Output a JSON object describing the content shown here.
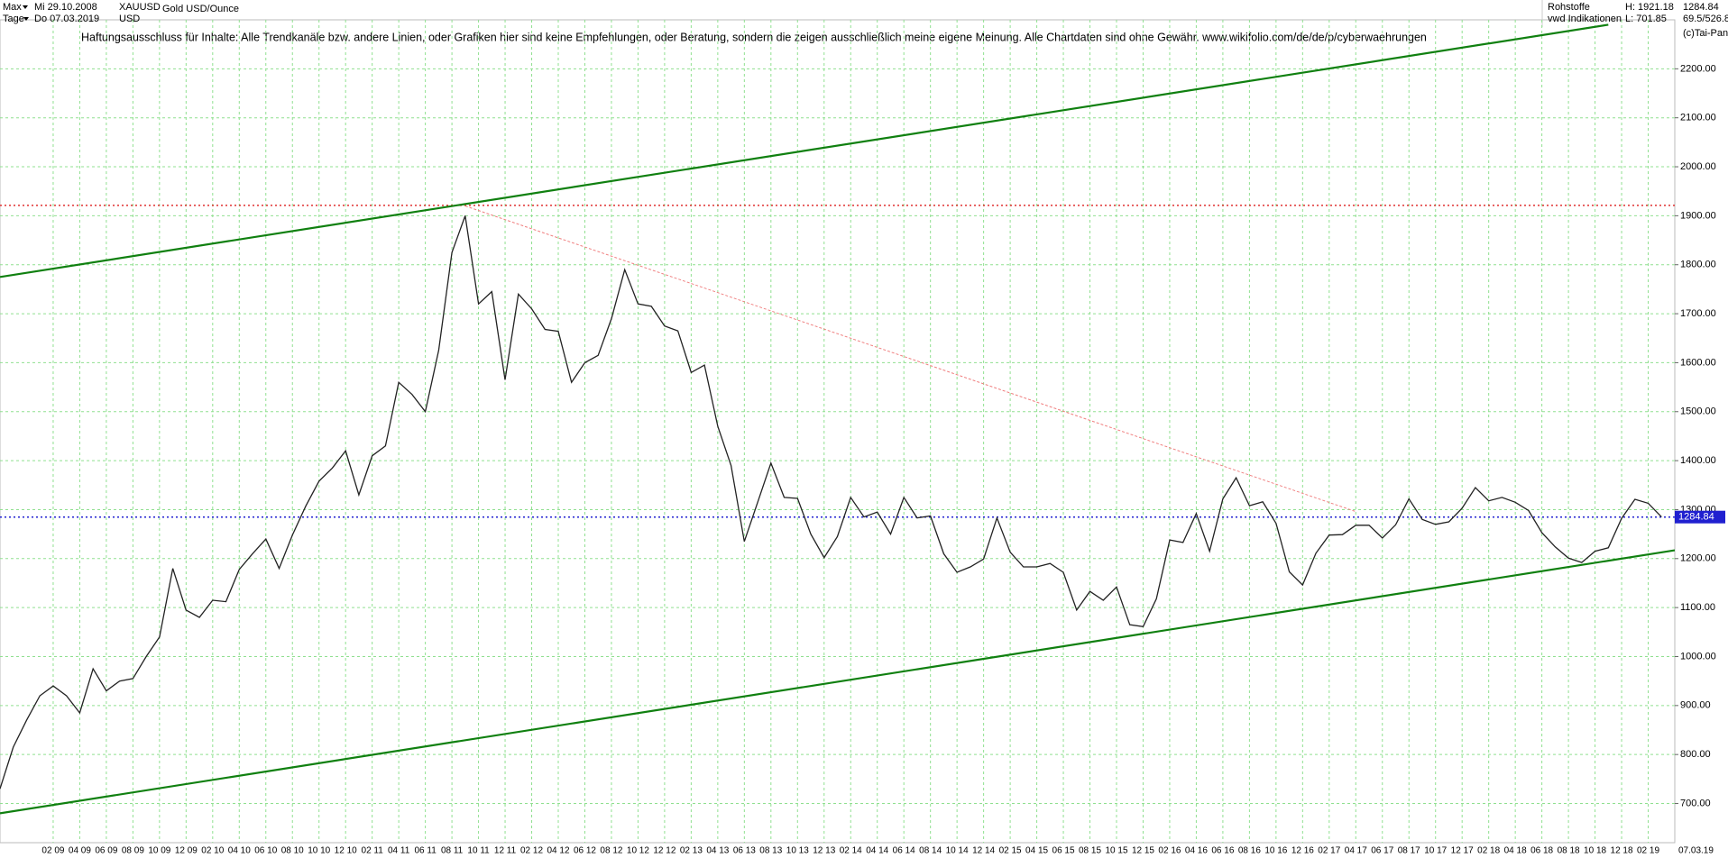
{
  "header": {
    "range": "Max",
    "start": "Mi 29.10.2008",
    "symbol": "XAUUSD",
    "name": "Gold USD/Ounce",
    "period": "Tage",
    "end": "Do 07.03.2019",
    "currency": "USD",
    "group": "Rohstoffe",
    "source": "vwd Indikationen",
    "high": "H: 1921.18",
    "low": "L: 701.85",
    "last": "1284.84",
    "ratio": "69.5/526.8",
    "copyright": "(c)Tai-Pan"
  },
  "chart_data": {
    "type": "line",
    "annotation": "Haftungsausschluss für Inhalte: Alle Trendkanäle bzw. andere Linien, oder Grafiken hier sind keine Empfehlungen, oder Beratung, sondern die zeigen ausschließlich meine eigene Meinung. Alle Chartdaten sind ohne Gewähr.  www.wikifolio.com/de/de/p/cyberwaehrungen",
    "x": [
      "2008-10",
      "2008-11",
      "2008-12",
      "2009-01",
      "2009-02",
      "2009-03",
      "2009-04",
      "2009-05",
      "2009-06",
      "2009-07",
      "2009-08",
      "2009-09",
      "2009-10",
      "2009-11",
      "2009-12",
      "2010-01",
      "2010-02",
      "2010-03",
      "2010-04",
      "2010-05",
      "2010-06",
      "2010-07",
      "2010-08",
      "2010-09",
      "2010-10",
      "2010-11",
      "2010-12",
      "2011-01",
      "2011-02",
      "2011-03",
      "2011-04",
      "2011-05",
      "2011-06",
      "2011-07",
      "2011-08",
      "2011-09",
      "2011-10",
      "2011-11",
      "2011-12",
      "2012-01",
      "2012-02",
      "2012-03",
      "2012-04",
      "2012-05",
      "2012-06",
      "2012-07",
      "2012-08",
      "2012-09",
      "2012-10",
      "2012-11",
      "2012-12",
      "2013-01",
      "2013-02",
      "2013-03",
      "2013-04",
      "2013-05",
      "2013-06",
      "2013-07",
      "2013-08",
      "2013-09",
      "2013-10",
      "2013-11",
      "2013-12",
      "2014-01",
      "2014-02",
      "2014-03",
      "2014-04",
      "2014-05",
      "2014-06",
      "2014-07",
      "2014-08",
      "2014-09",
      "2014-10",
      "2014-11",
      "2014-12",
      "2015-01",
      "2015-02",
      "2015-03",
      "2015-04",
      "2015-05",
      "2015-06",
      "2015-07",
      "2015-08",
      "2015-09",
      "2015-10",
      "2015-11",
      "2015-12",
      "2016-01",
      "2016-02",
      "2016-03",
      "2016-04",
      "2016-05",
      "2016-06",
      "2016-07",
      "2016-08",
      "2016-09",
      "2016-10",
      "2016-11",
      "2016-12",
      "2017-01",
      "2017-02",
      "2017-03",
      "2017-04",
      "2017-05",
      "2017-06",
      "2017-07",
      "2017-08",
      "2017-09",
      "2017-10",
      "2017-11",
      "2017-12",
      "2018-01",
      "2018-02",
      "2018-03",
      "2018-04",
      "2018-05",
      "2018-06",
      "2018-07",
      "2018-08",
      "2018-09",
      "2018-10",
      "2018-11",
      "2018-12",
      "2019-01",
      "2019-02",
      "2019-03"
    ],
    "series": [
      {
        "name": "XAUUSD",
        "color": "#222222",
        "values": [
          730,
          815,
          870,
          920,
          940,
          920,
          885,
          975,
          930,
          950,
          955,
          1000,
          1040,
          1180,
          1095,
          1080,
          1115,
          1112,
          1178,
          1210,
          1240,
          1180,
          1248,
          1307,
          1358,
          1385,
          1420,
          1330,
          1410,
          1430,
          1560,
          1535,
          1500,
          1625,
          1825,
          1900,
          1720,
          1745,
          1565,
          1740,
          1710,
          1668,
          1664,
          1560,
          1600,
          1615,
          1690,
          1790,
          1720,
          1715,
          1675,
          1665,
          1580,
          1595,
          1470,
          1390,
          1235,
          1315,
          1395,
          1325,
          1323,
          1250,
          1202,
          1245,
          1325,
          1285,
          1295,
          1250,
          1325,
          1283,
          1287,
          1210,
          1172,
          1183,
          1199,
          1283,
          1213,
          1183,
          1183,
          1190,
          1172,
          1095,
          1133,
          1115,
          1142,
          1065,
          1061,
          1118,
          1238,
          1233,
          1292,
          1215,
          1322,
          1365,
          1308,
          1316,
          1272,
          1173,
          1146,
          1211,
          1248,
          1249,
          1268,
          1268,
          1242,
          1269,
          1322,
          1280,
          1270,
          1275,
          1303,
          1345,
          1318,
          1325,
          1315,
          1298,
          1253,
          1224,
          1201,
          1192,
          1215,
          1222,
          1282,
          1321,
          1313,
          1285
        ]
      }
    ],
    "lines": [
      {
        "color": "#108010",
        "x": [
          "2008-10",
          "2018-11"
        ],
        "y": [
          1775,
          2290
        ]
      },
      {
        "color": "#108010",
        "x": [
          "2008-10",
          "2019-04"
        ],
        "y": [
          680,
          1217
        ]
      },
      {
        "color": "#f08080",
        "x": [
          "2011-09",
          "2017-04"
        ],
        "y": [
          1920,
          1296
        ]
      }
    ],
    "hlines": [
      {
        "value": 1921.18,
        "color": "#e03030"
      },
      {
        "value": 1284.84,
        "color": "#2020d0",
        "label": "1284.84"
      }
    ],
    "xlim": [
      "2008-10",
      "2019-04"
    ],
    "xticks": [
      {
        "value": "2009-02",
        "label": "02 09"
      },
      {
        "value": "2009-04",
        "label": "04 09"
      },
      {
        "value": "2009-06",
        "label": "06 09"
      },
      {
        "value": "2009-08",
        "label": "08 09"
      },
      {
        "value": "2009-10",
        "label": "10 09"
      },
      {
        "value": "2009-12",
        "label": "12 09"
      },
      {
        "value": "2010-02",
        "label": "02 10"
      },
      {
        "value": "2010-04",
        "label": "04 10"
      },
      {
        "value": "2010-06",
        "label": "06 10"
      },
      {
        "value": "2010-08",
        "label": "08 10"
      },
      {
        "value": "2010-10",
        "label": "10 10"
      },
      {
        "value": "2010-12",
        "label": "12 10"
      },
      {
        "value": "2011-02",
        "label": "02 11"
      },
      {
        "value": "2011-04",
        "label": "04 11"
      },
      {
        "value": "2011-06",
        "label": "06 11"
      },
      {
        "value": "2011-08",
        "label": "08 11"
      },
      {
        "value": "2011-10",
        "label": "10 11"
      },
      {
        "value": "2011-12",
        "label": "12 11"
      },
      {
        "value": "2012-02",
        "label": "02 12"
      },
      {
        "value": "2012-04",
        "label": "04 12"
      },
      {
        "value": "2012-06",
        "label": "06 12"
      },
      {
        "value": "2012-08",
        "label": "08 12"
      },
      {
        "value": "2012-10",
        "label": "10 12"
      },
      {
        "value": "2012-12",
        "label": "12 12"
      },
      {
        "value": "2013-02",
        "label": "02 13"
      },
      {
        "value": "2013-04",
        "label": "04 13"
      },
      {
        "value": "2013-06",
        "label": "06 13"
      },
      {
        "value": "2013-08",
        "label": "08 13"
      },
      {
        "value": "2013-10",
        "label": "10 13"
      },
      {
        "value": "2013-12",
        "label": "12 13"
      },
      {
        "value": "2014-02",
        "label": "02 14"
      },
      {
        "value": "2014-04",
        "label": "04 14"
      },
      {
        "value": "2014-06",
        "label": "06 14"
      },
      {
        "value": "2014-08",
        "label": "08 14"
      },
      {
        "value": "2014-10",
        "label": "10 14"
      },
      {
        "value": "2014-12",
        "label": "12 14"
      },
      {
        "value": "2015-02",
        "label": "02 15"
      },
      {
        "value": "2015-04",
        "label": "04 15"
      },
      {
        "value": "2015-06",
        "label": "06 15"
      },
      {
        "value": "2015-08",
        "label": "08 15"
      },
      {
        "value": "2015-10",
        "label": "10 15"
      },
      {
        "value": "2015-12",
        "label": "12 15"
      },
      {
        "value": "2016-02",
        "label": "02 16"
      },
      {
        "value": "2016-04",
        "label": "04 16"
      },
      {
        "value": "2016-06",
        "label": "06 16"
      },
      {
        "value": "2016-08",
        "label": "08 16"
      },
      {
        "value": "2016-10",
        "label": "10 16"
      },
      {
        "value": "2016-12",
        "label": "12 16"
      },
      {
        "value": "2017-02",
        "label": "02 17"
      },
      {
        "value": "2017-04",
        "label": "04 17"
      },
      {
        "value": "2017-06",
        "label": "06 17"
      },
      {
        "value": "2017-08",
        "label": "08 17"
      },
      {
        "value": "2017-10",
        "label": "10 17"
      },
      {
        "value": "2017-12",
        "label": "12 17"
      },
      {
        "value": "2018-02",
        "label": "02 18"
      },
      {
        "value": "2018-04",
        "label": "04 18"
      },
      {
        "value": "2018-06",
        "label": "06 18"
      },
      {
        "value": "2018-08",
        "label": "08 18"
      },
      {
        "value": "2018-10",
        "label": "10 18"
      },
      {
        "value": "2018-12",
        "label": "12 18"
      },
      {
        "value": "2019-02",
        "label": "02 19"
      }
    ],
    "x_end_label": "07.03.19",
    "ylim": [
      620,
      2300
    ],
    "yticks": [
      {
        "value": 700,
        "label": "700.00"
      },
      {
        "value": 800,
        "label": "800.00"
      },
      {
        "value": 900,
        "label": "900.00"
      },
      {
        "value": 1000,
        "label": "1000.00"
      },
      {
        "value": 1100,
        "label": "1100.00"
      },
      {
        "value": 1200,
        "label": "1200.00"
      },
      {
        "value": 1300,
        "label": "1300.00"
      },
      {
        "value": 1400,
        "label": "1400.00"
      },
      {
        "value": 1500,
        "label": "1500.00"
      },
      {
        "value": 1600,
        "label": "1600.00"
      },
      {
        "value": 1700,
        "label": "1700.00"
      },
      {
        "value": 1800,
        "label": "1800.00"
      },
      {
        "value": 1900,
        "label": "1900.00"
      },
      {
        "value": 2000,
        "label": "2000.00"
      },
      {
        "value": 2100,
        "label": "2100.00"
      },
      {
        "value": 2200,
        "label": "2200.00"
      }
    ],
    "grid": true,
    "grid_color": "#90e090"
  }
}
